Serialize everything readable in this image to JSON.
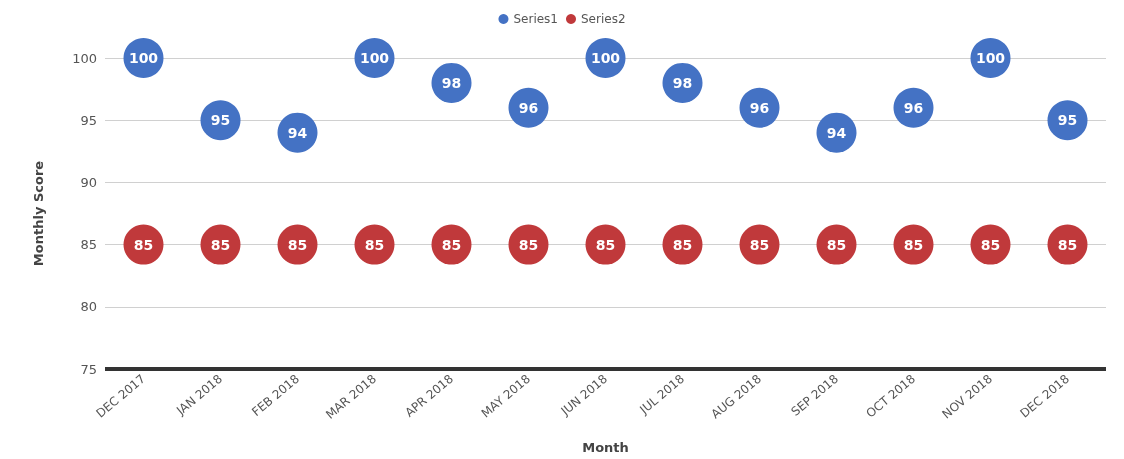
{
  "chart_data": {
    "type": "scatter",
    "xlabel": "Month",
    "ylabel": "Monthly Score",
    "categories": [
      "DEC 2017",
      "JAN 2018",
      "FEB 2018",
      "MAR 2018",
      "APR 2018",
      "MAY 2018",
      "JUN 2018",
      "JUL 2018",
      "AUG 2018",
      "SEP 2018",
      "OCT 2018",
      "NOV 2018",
      "DEC 2018"
    ],
    "series": [
      {
        "name": "Series1",
        "color": "#4472c4",
        "values": [
          100,
          95,
          94,
          100,
          98,
          96,
          100,
          98,
          96,
          94,
          96,
          100,
          95
        ]
      },
      {
        "name": "Series2",
        "color": "#c0393b",
        "values": [
          85,
          85,
          85,
          85,
          85,
          85,
          85,
          85,
          85,
          85,
          85,
          85,
          85
        ]
      }
    ],
    "ylim": [
      75,
      100
    ],
    "yticks": [
      75,
      80,
      85,
      90,
      95,
      100
    ],
    "grid": "y",
    "legend": "top",
    "marker": "circle",
    "data_labels": true
  }
}
